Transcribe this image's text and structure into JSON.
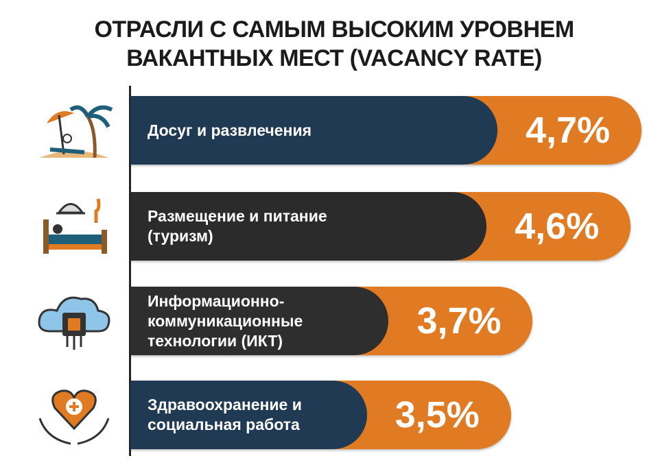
{
  "chart_data": {
    "type": "bar",
    "orientation": "horizontal",
    "title": "ОТРАСЛИ С САМЫМ ВЫСОКИМ УРОВНЕМ ВАКАНТНЫХ МЕСТ (VACANCY RATE)",
    "categories": [
      "Досуг и развлечения",
      "Размещение и питание (туризм)",
      "Информационно-коммуникационные технологии (ИКТ)",
      "Здравоохранение и социальная работа"
    ],
    "values": [
      4.7,
      4.6,
      3.7,
      3.5
    ],
    "value_labels": [
      "4,7%",
      "4,6%",
      "3,7%",
      "3,5%"
    ],
    "color": "#e07b24",
    "label_colors": [
      "#1f3a52",
      "#2b2b2b",
      "#2e2e2e",
      "#1f3a52"
    ]
  }
}
